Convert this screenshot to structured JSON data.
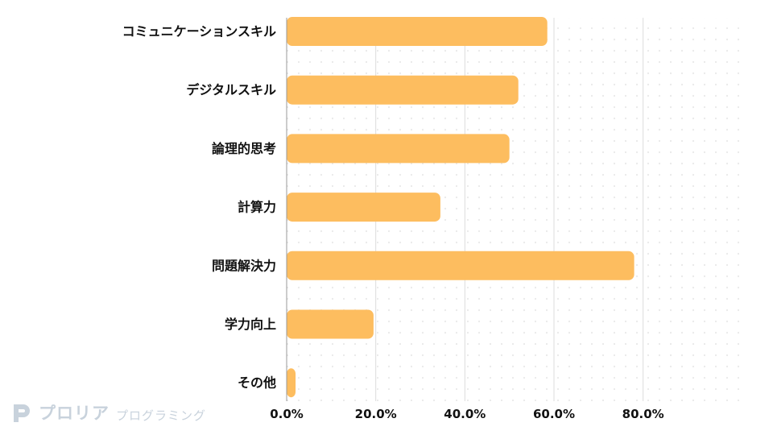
{
  "chart_data": {
    "type": "bar",
    "orientation": "horizontal",
    "categories": [
      "コミュニケーションスキル",
      "デジタルスキル",
      "論理的思考",
      "計算力",
      "問題解決力",
      "学力向上",
      "その他"
    ],
    "values": [
      58.5,
      52.0,
      50.0,
      34.5,
      78.0,
      19.5,
      2.0
    ],
    "xlim": [
      0,
      100
    ],
    "x_ticks": [
      0,
      20,
      40,
      60,
      80
    ],
    "x_tick_labels": [
      "0.0%",
      "20.0%",
      "40.0%",
      "60.0%",
      "80.0%"
    ],
    "bar_color": "#fdbd5f",
    "grid": true,
    "title": "",
    "xlabel": "",
    "ylabel": ""
  },
  "logo": {
    "main": "プロリア",
    "sub": "プログラミング",
    "color": "#c8d2dc"
  }
}
